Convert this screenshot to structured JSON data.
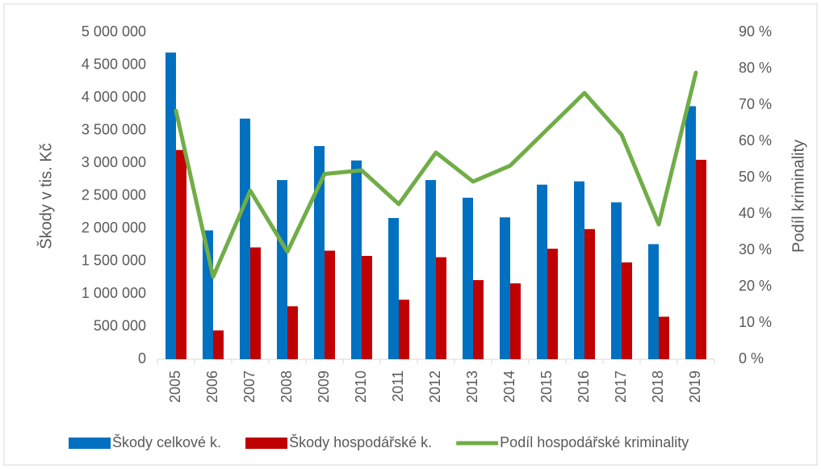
{
  "chart_data": {
    "type": "bar_line",
    "y_label": "Škody v tis. Kč",
    "y2_label": "Podíl kriminality",
    "categories": [
      "2005",
      "2006",
      "2007",
      "2008",
      "2009",
      "2010",
      "2011",
      "2012",
      "2013",
      "2014",
      "2015",
      "2016",
      "2017",
      "2018",
      "2019"
    ],
    "series": [
      {
        "name": "Škody celkové k.",
        "type": "bar",
        "color": "#0070c0",
        "axis": "y",
        "values": [
          4690000,
          1970000,
          3680000,
          2740000,
          3260000,
          3040000,
          2160000,
          2740000,
          2470000,
          2170000,
          2670000,
          2720000,
          2400000,
          1760000,
          3870000
        ]
      },
      {
        "name": "Škody hospodářské k.",
        "type": "bar",
        "color": "#c00000",
        "axis": "y",
        "values": [
          3200000,
          440000,
          1710000,
          810000,
          1660000,
          1580000,
          910000,
          1560000,
          1210000,
          1160000,
          1690000,
          1990000,
          1480000,
          650000,
          3050000
        ]
      },
      {
        "name": "Podíl hospodářské kriminality",
        "type": "line",
        "color": "#70ad47",
        "axis": "y2",
        "values": [
          68.4,
          22.7,
          46.4,
          29.6,
          51,
          52,
          42.7,
          56.9,
          48.9,
          53.3,
          63.3,
          73.3,
          61.8,
          37.1,
          78.9
        ]
      }
    ],
    "ylim": [
      0,
      5000000
    ],
    "yticks": [
      0,
      {
        "value": 500000,
        "label": "500 000"
      },
      {
        "value": 1000000,
        "label": "1 000 000"
      },
      {
        "value": 1500000,
        "label": "1 500 000"
      },
      {
        "value": 2000000,
        "label": "2 000 000"
      },
      {
        "value": 2500000,
        "label": "2 500 000"
      },
      {
        "value": 3000000,
        "label": "3 000 000"
      },
      {
        "value": 3500000,
        "label": "3 500 000"
      },
      {
        "value": 4000000,
        "label": "4 000 000"
      },
      {
        "value": 4500000,
        "label": "4 500 000"
      },
      {
        "value": 5000000,
        "label": "5 000 000"
      }
    ],
    "y2lim": [
      0,
      90
    ],
    "y2ticks": [
      {
        "value": 0,
        "label": "0 %"
      },
      {
        "value": 10,
        "label": "10 %"
      },
      {
        "value": 20,
        "label": "20 %"
      },
      {
        "value": 30,
        "label": "30 %"
      },
      {
        "value": 40,
        "label": "40 %"
      },
      {
        "value": 50,
        "label": "50 %"
      },
      {
        "value": 60,
        "label": "60 %"
      },
      {
        "value": 70,
        "label": "70 %"
      },
      {
        "value": 80,
        "label": "80 %"
      },
      {
        "value": 90,
        "label": "90 %"
      }
    ],
    "legend": "bottom"
  }
}
